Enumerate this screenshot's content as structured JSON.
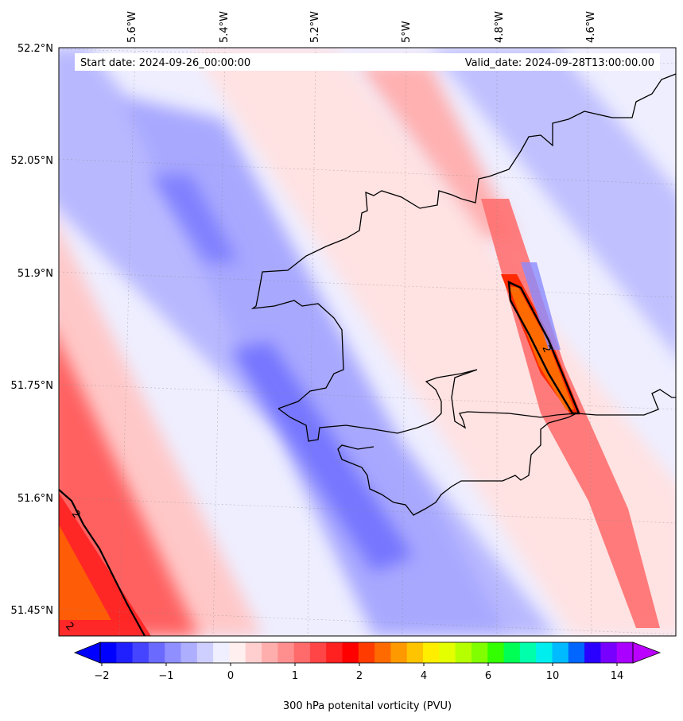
{
  "map": {
    "start_date_text": "Start date: 2024-09-26_00:00:00",
    "valid_date_text": "Valid_date: 2024-09-28T13:00:00.00",
    "lon_labels": [
      "5.6°W",
      "5.4°W",
      "5.2°W",
      "5°W",
      "4.8°W",
      "4.6°W"
    ],
    "lat_labels": [
      "52.2°N",
      "52.05°N",
      "51.9°N",
      "51.75°N",
      "51.6°N",
      "51.45°N"
    ],
    "contour_label": "2",
    "colorbar": {
      "label": "300 hPa potenital vorticity (PVU)",
      "tick_labels": [
        "−2",
        "−1",
        "0",
        "1",
        "2",
        "4",
        "6",
        "10",
        "14"
      ],
      "colors": [
        "#0000ff",
        "#2020ff",
        "#4545ff",
        "#6a6aff",
        "#8f8fff",
        "#aeaeff",
        "#cfcfff",
        "#efefff",
        "#ffefef",
        "#ffcfcf",
        "#ffaeae",
        "#ff8f8f",
        "#ff6a6a",
        "#ff4545",
        "#ff2020",
        "#ff0000",
        "#ff3b00",
        "#ff6a00",
        "#ff9900",
        "#ffc400",
        "#ffee00",
        "#e4ff00",
        "#b6ff00",
        "#80ff00",
        "#33ff00",
        "#00ff55",
        "#00ffaa",
        "#00eeee",
        "#00bbff",
        "#0066ff",
        "#2a00ff",
        "#7700ff",
        "#aa00ff"
      ],
      "extend_min_color": "#0000ff",
      "extend_max_color": "#bb00ff"
    },
    "colors": {
      "coastline": "#000000",
      "contour": "#000000"
    }
  }
}
